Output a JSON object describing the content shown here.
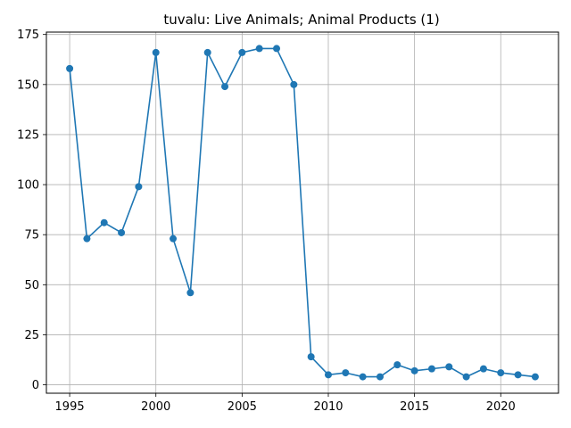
{
  "chart_data": {
    "type": "line",
    "title": "tuvalu: Live Animals; Animal Products (1)",
    "xlabel": "",
    "ylabel": "",
    "xlim": [
      1993.65,
      2023.35
    ],
    "ylim": [
      -4.2,
      176.2
    ],
    "xticks": [
      1995,
      2000,
      2005,
      2010,
      2015,
      2020
    ],
    "yticks": [
      0,
      25,
      50,
      75,
      100,
      125,
      150,
      175
    ],
    "grid": true,
    "line_color": "#1f77b4",
    "x": [
      1995,
      1996,
      1997,
      1998,
      1999,
      2000,
      2001,
      2002,
      2003,
      2004,
      2005,
      2006,
      2007,
      2008,
      2009,
      2010,
      2011,
      2012,
      2013,
      2014,
      2015,
      2016,
      2017,
      2018,
      2019,
      2020,
      2021,
      2022
    ],
    "y": [
      158,
      73,
      81,
      76,
      99,
      166,
      73,
      46,
      166,
      149,
      166,
      168,
      168,
      150,
      14,
      5,
      6,
      4,
      4,
      10,
      7,
      8,
      9,
      4,
      8,
      6,
      5,
      4
    ]
  }
}
